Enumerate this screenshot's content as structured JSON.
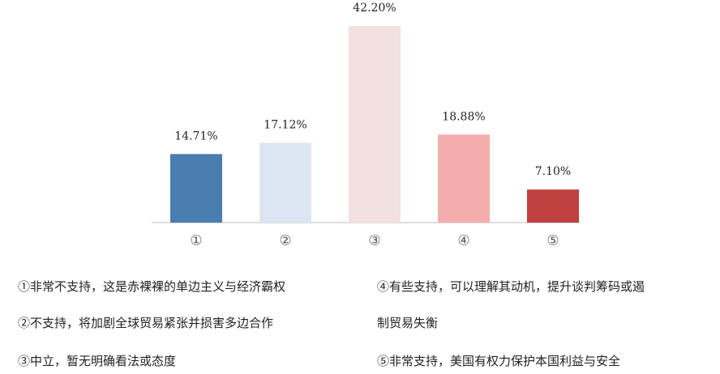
{
  "chart_data": {
    "type": "bar",
    "categories": [
      "①",
      "②",
      "③",
      "④",
      "⑤"
    ],
    "values": [
      14.71,
      17.12,
      42.2,
      18.88,
      7.1
    ],
    "value_labels": [
      "14.71%",
      "17.12%",
      "42.20%",
      "18.88%",
      "7.10%"
    ],
    "colors": [
      "#4a7db0",
      "#dce6f2",
      "#f3e0e1",
      "#f4adad",
      "#c0403f"
    ],
    "notes": [
      [
        "①非常不支持，这是赤裸裸的单边主义与经济霸权"
      ],
      [
        "②不支持，将加剧全球贸易紧张并损害多边合作"
      ],
      [
        "③中立，暂无明确看法或态度"
      ],
      [
        "④有些支持，可以理解其动机，提升谈判筹码或遏",
        "制贸易失衡"
      ],
      [
        "⑤非常支持，美国有权力保护本国利益与安全"
      ]
    ]
  }
}
